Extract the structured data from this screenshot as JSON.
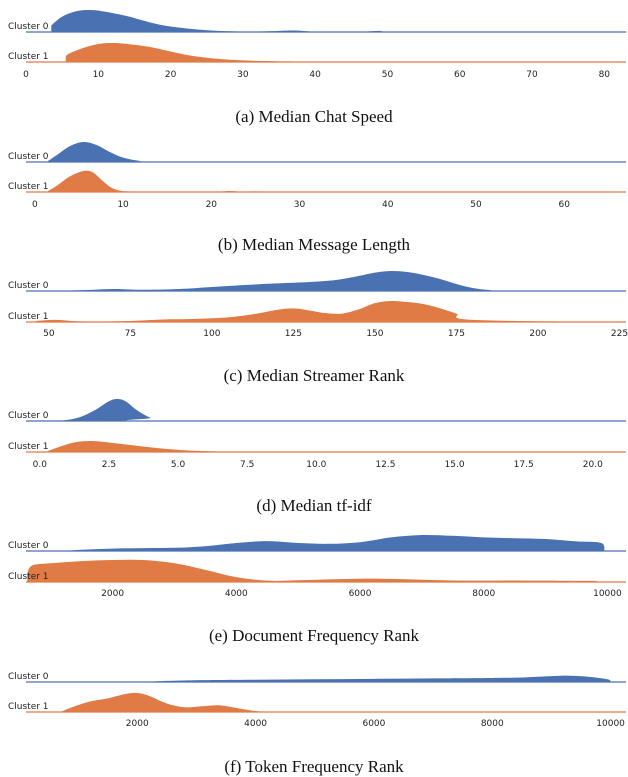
{
  "colors": {
    "cluster0": "#4a72b2",
    "cluster1": "#e07b45"
  },
  "chart_data": [
    {
      "type": "area",
      "title": "(a) Median Chat Speed",
      "xlim": [
        0,
        83
      ],
      "ticks": [
        "0",
        "10",
        "20",
        "30",
        "40",
        "50",
        "60",
        "70",
        "80"
      ],
      "tick_values": [
        0,
        10,
        20,
        30,
        40,
        50,
        60,
        70,
        80
      ],
      "series": [
        {
          "name": "Cluster 0",
          "x": [
            3.5,
            5,
            7,
            9,
            11,
            14,
            17,
            20,
            25,
            30,
            34,
            37,
            40,
            45,
            48,
            49,
            50,
            55,
            83
          ],
          "y": [
            0.3,
            0.7,
            0.95,
            1.0,
            0.92,
            0.72,
            0.45,
            0.25,
            0.08,
            0.02,
            0.04,
            0.07,
            0.02,
            0.0,
            0.04,
            0.05,
            0.0,
            0.0,
            0.0
          ]
        },
        {
          "name": "Cluster 1",
          "x": [
            5.5,
            6,
            8,
            10,
            12,
            14,
            17,
            20,
            23,
            27,
            31,
            36,
            45,
            55,
            83
          ],
          "y": [
            0.3,
            0.45,
            0.75,
            0.95,
            1.0,
            0.95,
            0.8,
            0.55,
            0.32,
            0.15,
            0.07,
            0.03,
            0.01,
            0.0,
            0.0
          ]
        }
      ]
    },
    {
      "type": "area",
      "title": "(b) Median Message Length",
      "xlim": [
        -1,
        67
      ],
      "ticks": [
        "0",
        "10",
        "20",
        "30",
        "40",
        "50",
        "60"
      ],
      "tick_values": [
        0,
        10,
        20,
        30,
        40,
        50,
        60
      ],
      "series": [
        {
          "name": "Cluster 0",
          "x": [
            1.5,
            2.5,
            4,
            5.5,
            7,
            8.5,
            10,
            12,
            14,
            67
          ],
          "y": [
            0.05,
            0.35,
            0.8,
            1.0,
            0.85,
            0.5,
            0.22,
            0.05,
            0.0,
            0.0
          ]
        },
        {
          "name": "Cluster 1",
          "x": [
            1.5,
            2.5,
            4,
            5.5,
            6.5,
            7.5,
            8.5,
            9.5,
            11,
            14,
            20,
            22,
            24,
            26,
            28,
            67
          ],
          "y": [
            0.05,
            0.3,
            0.75,
            1.0,
            0.95,
            0.6,
            0.25,
            0.08,
            0.02,
            0.0,
            0.0,
            0.05,
            0.0,
            0.04,
            0.0,
            0.0
          ]
        }
      ]
    },
    {
      "type": "area",
      "title": "(c) Median Streamer Rank",
      "xlim": [
        43,
        227
      ],
      "ticks": [
        "50",
        "75",
        "100",
        "125",
        "150",
        "175",
        "200",
        "225"
      ],
      "tick_values": [
        50,
        75,
        100,
        125,
        150,
        175,
        200,
        225
      ],
      "series": [
        {
          "name": "Cluster 0",
          "x": [
            46,
            55,
            62,
            70,
            78,
            90,
            100,
            110,
            120,
            130,
            138,
            145,
            150,
            155,
            160,
            165,
            170,
            175,
            180,
            185,
            190,
            227
          ],
          "y": [
            0.0,
            0.02,
            0.05,
            0.1,
            0.06,
            0.1,
            0.2,
            0.3,
            0.38,
            0.45,
            0.55,
            0.75,
            0.92,
            1.0,
            0.95,
            0.8,
            0.6,
            0.35,
            0.15,
            0.05,
            0.0,
            0.0
          ]
        },
        {
          "name": "Cluster 1",
          "x": [
            46,
            52,
            58,
            65,
            75,
            85,
            95,
            105,
            113,
            120,
            125,
            130,
            135,
            140,
            145,
            150,
            155,
            160,
            165,
            170,
            175,
            180,
            227
          ],
          "y": [
            0.05,
            0.1,
            0.04,
            0.02,
            0.05,
            0.12,
            0.15,
            0.22,
            0.38,
            0.58,
            0.65,
            0.55,
            0.42,
            0.4,
            0.6,
            0.9,
            1.0,
            0.95,
            0.85,
            0.65,
            0.4,
            0.1,
            0.0
          ]
        }
      ]
    },
    {
      "type": "area",
      "title": "(d) Median tf-idf",
      "xlim": [
        -0.5,
        21.2
      ],
      "ticks": [
        "0.0",
        "2.5",
        "5.0",
        "7.5",
        "10.0",
        "12.5",
        "15.0",
        "17.5",
        "20.0"
      ],
      "tick_values": [
        0,
        2.5,
        5,
        7.5,
        10,
        12.5,
        15,
        17.5,
        20
      ],
      "series": [
        {
          "name": "Cluster 0",
          "x": [
            0.5,
            1.0,
            1.5,
            2.0,
            2.5,
            2.8,
            3.1,
            3.5,
            4.0,
            4.5,
            21.2
          ],
          "y": [
            0.0,
            0.05,
            0.2,
            0.5,
            0.9,
            1.0,
            0.9,
            0.5,
            0.15,
            0.0,
            0.0
          ]
        },
        {
          "name": "Cluster 1",
          "x": [
            0.3,
            0.8,
            1.3,
            1.8,
            2.3,
            3.0,
            3.8,
            4.5,
            5.5,
            6.5,
            7.5,
            21.2
          ],
          "y": [
            0.1,
            0.55,
            0.9,
            1.0,
            0.92,
            0.72,
            0.48,
            0.3,
            0.12,
            0.04,
            0.0,
            0.0
          ]
        }
      ]
    },
    {
      "type": "area",
      "title": "(e) Document Frequency Rank",
      "xlim": [
        600,
        10300
      ],
      "ticks": [
        "2000",
        "4000",
        "6000",
        "8000",
        "10000"
      ],
      "tick_values": [
        2000,
        4000,
        6000,
        8000,
        10000
      ],
      "series": [
        {
          "name": "Cluster 0",
          "x": [
            1300,
            1500,
            2000,
            2500,
            3000,
            3500,
            4000,
            4500,
            5000,
            5500,
            6000,
            6500,
            7000,
            7500,
            8000,
            8500,
            9000,
            9500,
            9900,
            9950
          ],
          "y": [
            0.03,
            0.08,
            0.15,
            0.18,
            0.2,
            0.3,
            0.5,
            0.62,
            0.5,
            0.45,
            0.55,
            0.85,
            1.0,
            0.95,
            0.85,
            0.8,
            0.75,
            0.6,
            0.5,
            0.0
          ]
        },
        {
          "name": "Cluster 1",
          "x": [
            620,
            700,
            1000,
            1500,
            2000,
            2500,
            3000,
            3500,
            4000,
            4500,
            5000,
            5500,
            6000,
            6500,
            7000,
            7500,
            8000,
            8500,
            9000,
            9500,
            9800,
            9850
          ],
          "y": [
            0.4,
            0.75,
            0.85,
            0.95,
            1.0,
            1.0,
            0.85,
            0.55,
            0.22,
            0.06,
            0.08,
            0.12,
            0.15,
            0.14,
            0.1,
            0.07,
            0.06,
            0.07,
            0.06,
            0.05,
            0.05,
            0.0
          ]
        }
      ]
    },
    {
      "type": "area",
      "title": "(f) Token Frequency Rank",
      "xlim": [
        120,
        10260
      ],
      "ticks": [
        "2000",
        "4000",
        "6000",
        "8000",
        "10000"
      ],
      "tick_values": [
        2000,
        4000,
        6000,
        8000,
        10000
      ],
      "series": [
        {
          "name": "Cluster 0",
          "x": [
            2100,
            2500,
            3000,
            4000,
            5000,
            6000,
            7000,
            8000,
            8500,
            9000,
            9300,
            9600,
            9950,
            10000
          ],
          "y": [
            0.0,
            0.12,
            0.2,
            0.25,
            0.3,
            0.35,
            0.4,
            0.45,
            0.5,
            0.65,
            0.7,
            0.6,
            0.3,
            0.0
          ]
        },
        {
          "name": "Cluster 1",
          "x": [
            700,
            900,
            1200,
            1500,
            1800,
            2000,
            2200,
            2500,
            2800,
            3100,
            3400,
            3700,
            4000,
            4200
          ],
          "y": [
            0.0,
            0.25,
            0.55,
            0.72,
            0.95,
            1.0,
            0.85,
            0.45,
            0.25,
            0.3,
            0.35,
            0.2,
            0.05,
            0.0
          ]
        }
      ]
    }
  ]
}
